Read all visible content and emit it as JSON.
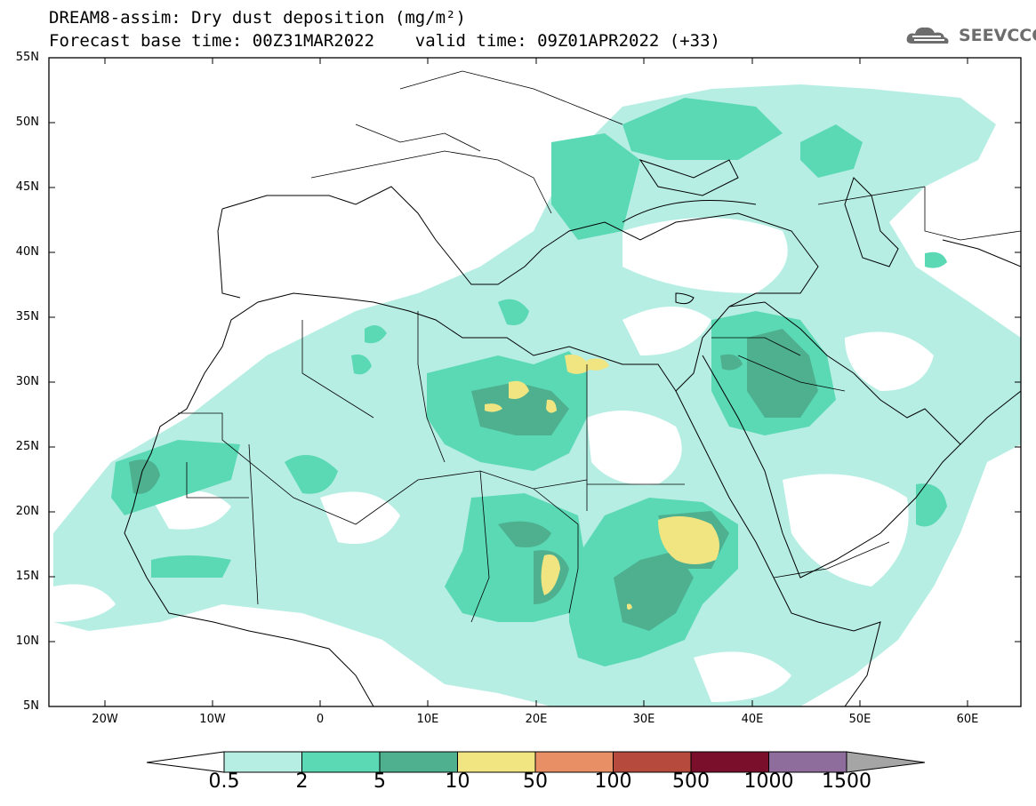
{
  "title": {
    "line1": "DREAM8-assim: Dry dust deposition (mg/m²)",
    "line2": "Forecast base time: 00Z31MAR2022    valid time: 09Z01APR2022 (+33)"
  },
  "logo": {
    "text": "SEEVCCC",
    "icon": "cloud-logo-icon"
  },
  "axes": {
    "lat_labels": [
      "55N",
      "50N",
      "45N",
      "40N",
      "35N",
      "30N",
      "25N",
      "20N",
      "15N",
      "10N",
      "5N"
    ],
    "lon_labels": [
      "20W",
      "10W",
      "0",
      "10E",
      "20E",
      "30E",
      "40E",
      "50E",
      "60E"
    ]
  },
  "colorbar": {
    "labels": [
      "0.5",
      "2",
      "5",
      "10",
      "50",
      "100",
      "500",
      "1000",
      "1500"
    ],
    "colors": [
      "#b7eee4",
      "#5ad9b4",
      "#4eb08e",
      "#f1e582",
      "#e88f65",
      "#b54a3d",
      "#7a0f2b",
      "#8e6c9b"
    ],
    "under_color": "#ffffff",
    "over_color": "#a5a5a5"
  },
  "map": {
    "region": "North Africa, Europe and Middle East",
    "lon_range": [
      -25,
      65
    ],
    "lat_range": [
      5,
      55
    ]
  }
}
